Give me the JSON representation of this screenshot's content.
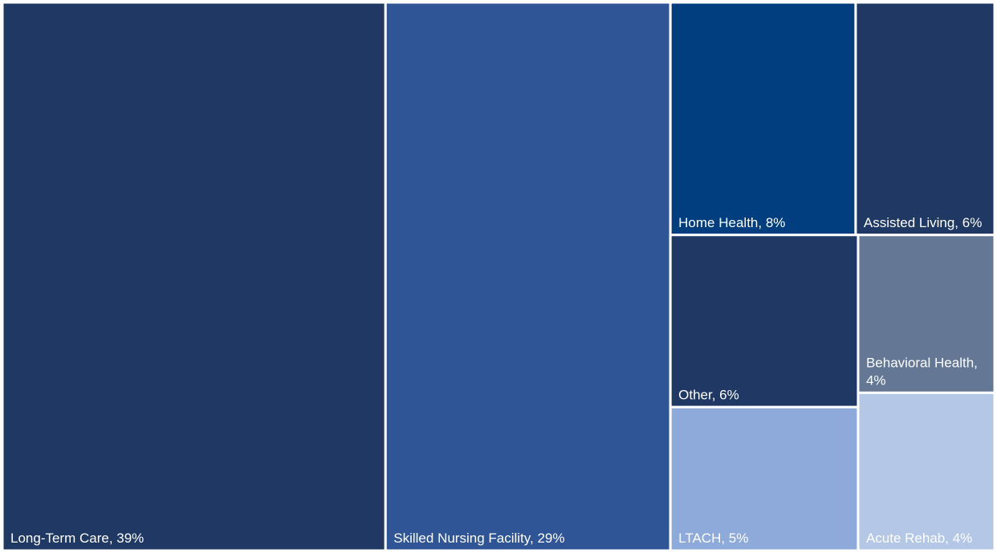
{
  "chart_data": {
    "type": "treemap",
    "value_labels": [
      "Long-Term Care, 39%",
      "Skilled Nursing Facility, 29%",
      "Home Health, 8%",
      "Assisted Living, 6%",
      "Other, 6%",
      "Behavioral Health, 4%",
      "LTACH, 5%",
      "Acute Rehab, 4%"
    ],
    "values": [
      39,
      29,
      8,
      6,
      6,
      4,
      5,
      4
    ],
    "colors": [
      "#203864",
      "#2f5597",
      "#003e80",
      "#203864",
      "#203864",
      "#647896",
      "#8eaadb",
      "#b4c7e7"
    ]
  }
}
